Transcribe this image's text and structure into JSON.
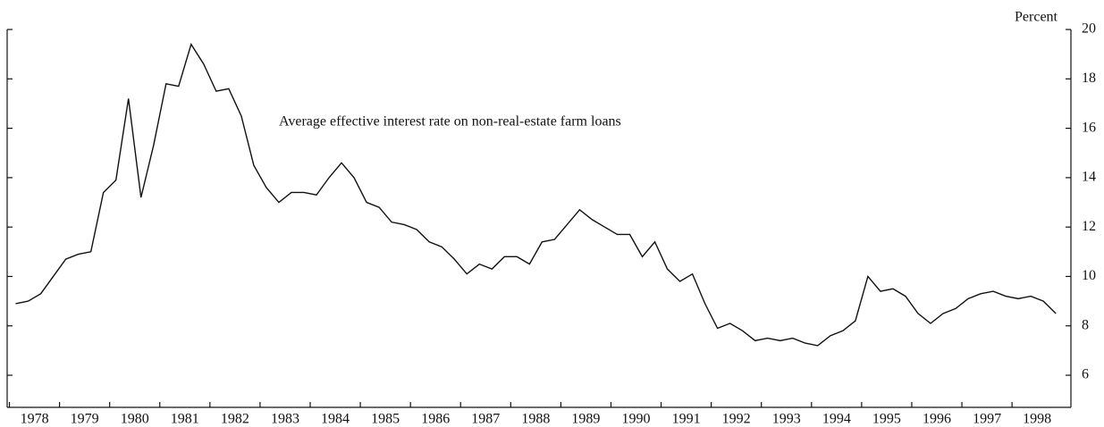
{
  "chart_data": {
    "type": "line",
    "annotation": "Average effective interest rate on non-real-estate farm loans",
    "y_label": "Percent",
    "x": [
      1978,
      1978.25,
      1978.5,
      1978.75,
      1979,
      1979.25,
      1979.5,
      1979.75,
      1980,
      1980.25,
      1980.5,
      1980.75,
      1981,
      1981.25,
      1981.5,
      1981.75,
      1982,
      1982.25,
      1982.5,
      1982.75,
      1983,
      1983.25,
      1983.5,
      1983.75,
      1984,
      1984.25,
      1984.5,
      1984.75,
      1985,
      1985.25,
      1985.5,
      1985.75,
      1986,
      1986.25,
      1986.5,
      1986.75,
      1987,
      1987.25,
      1987.5,
      1987.75,
      1988,
      1988.25,
      1988.5,
      1988.75,
      1989,
      1989.25,
      1989.5,
      1989.75,
      1990,
      1990.25,
      1990.5,
      1990.75,
      1991,
      1991.25,
      1991.5,
      1991.75,
      1992,
      1992.25,
      1992.5,
      1992.75,
      1993,
      1993.25,
      1993.5,
      1993.75,
      1994,
      1994.25,
      1994.5,
      1994.75,
      1995,
      1995.25,
      1995.5,
      1995.75,
      1996,
      1996.25,
      1996.5,
      1996.75,
      1997,
      1997.25,
      1997.5,
      1997.75,
      1998,
      1998.25,
      1998.5,
      1998.75
    ],
    "series": [
      {
        "color": "#111111",
        "values": [
          8.9,
          9.0,
          9.3,
          10.0,
          10.7,
          10.9,
          11.0,
          13.4,
          13.9,
          17.2,
          13.2,
          15.3,
          17.8,
          17.7,
          19.4,
          18.6,
          17.5,
          17.6,
          16.5,
          14.5,
          13.6,
          13.0,
          13.4,
          13.4,
          13.3,
          14.0,
          14.6,
          14.0,
          13.0,
          12.8,
          12.2,
          12.1,
          11.9,
          11.4,
          11.2,
          10.7,
          10.1,
          10.5,
          10.3,
          10.8,
          10.8,
          10.5,
          11.4,
          11.5,
          12.1,
          12.7,
          12.3,
          12.0,
          11.7,
          11.7,
          10.8,
          11.4,
          10.3,
          9.8,
          10.1,
          8.9,
          7.9,
          8.1,
          7.8,
          7.4,
          7.5,
          7.4,
          7.5,
          7.3,
          7.2,
          7.6,
          7.8,
          8.2,
          10.0,
          9.4,
          9.5,
          9.2,
          8.5,
          8.1,
          8.5,
          8.7,
          9.1,
          9.3,
          9.4,
          9.2,
          9.1,
          9.2,
          9.0,
          8.5
        ]
      }
    ],
    "xlim": [
      1977.83,
      1999.05
    ],
    "xticks": [
      1978,
      1979,
      1980,
      1981,
      1982,
      1983,
      1984,
      1985,
      1986,
      1987,
      1988,
      1989,
      1990,
      1991,
      1992,
      1993,
      1994,
      1995,
      1996,
      1997,
      1998
    ],
    "ylim": [
      4.7,
      20
    ],
    "yticks": [
      6,
      8,
      10,
      12,
      14,
      16,
      18,
      20
    ]
  }
}
